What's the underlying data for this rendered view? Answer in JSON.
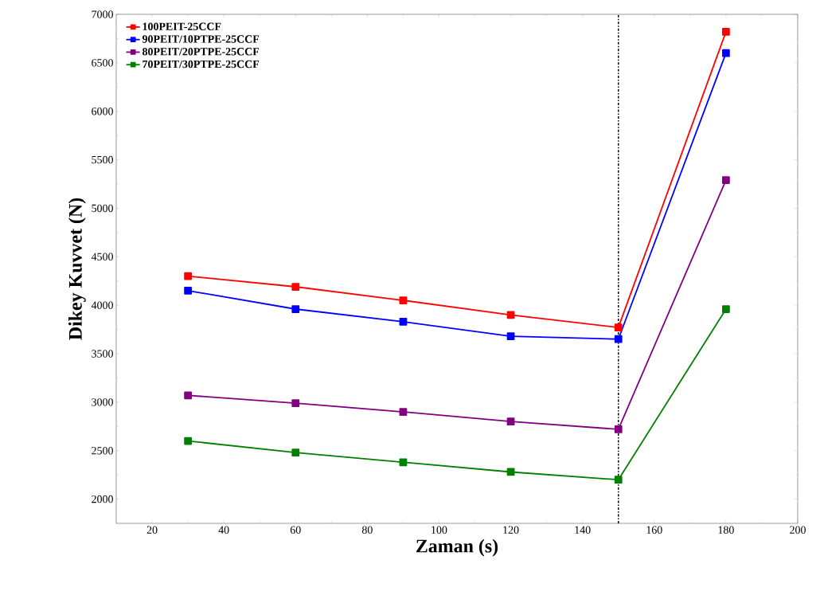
{
  "chart_data": {
    "type": "line",
    "xlabel": "Zaman (s)",
    "ylabel": "Dikey Kuvvet (N)",
    "x": [
      30,
      60,
      90,
      120,
      150,
      180
    ],
    "series": [
      {
        "name": "100PEIT-25CCF",
        "color": "#ff0000",
        "values": [
          4300,
          4190,
          4050,
          3900,
          3770,
          6820
        ]
      },
      {
        "name": "90PEIT/10PTPE-25CCF",
        "color": "#0000ff",
        "values": [
          4150,
          3960,
          3830,
          3680,
          3650,
          6600
        ]
      },
      {
        "name": "80PEIT/20PTPE-25CCF",
        "color": "#800080",
        "values": [
          3070,
          2990,
          2900,
          2800,
          2720,
          5290
        ]
      },
      {
        "name": "70PEIT/30PTPE-25CCF",
        "color": "#008000",
        "values": [
          2600,
          2480,
          2380,
          2280,
          2200,
          3960
        ]
      }
    ],
    "xlim": [
      10,
      200
    ],
    "xticks": [
      20,
      40,
      60,
      80,
      100,
      120,
      140,
      160,
      180,
      200
    ],
    "ylim": [
      1750,
      7000
    ],
    "yticks": [
      2000,
      2500,
      3000,
      3500,
      4000,
      4500,
      5000,
      5500,
      6000,
      6500,
      7000
    ],
    "ref_lines": [
      {
        "axis": "x",
        "value": 150,
        "color": "#000000",
        "line_style": "dashdot"
      }
    ],
    "legend": "top left",
    "marker": "square",
    "line_style": "solid",
    "grid": false
  }
}
